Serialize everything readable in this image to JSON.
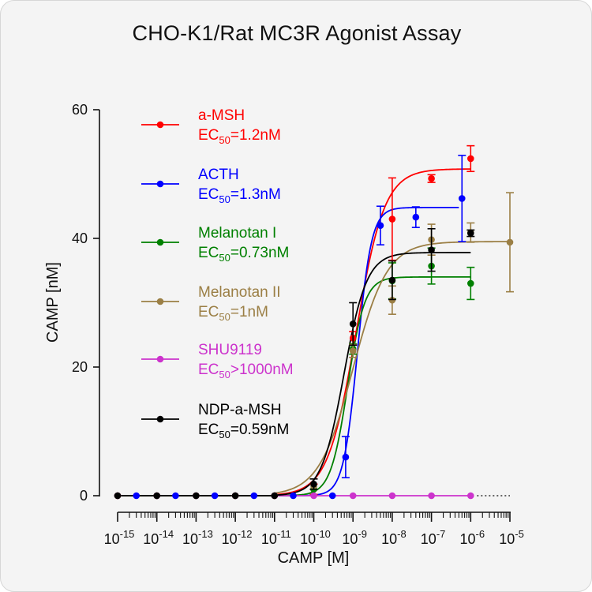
{
  "chart_data": {
    "type": "scatter",
    "title": "CHO-K1/Rat MC3R Agonist Assay",
    "xlabel": "CAMP [M]",
    "ylabel": "CAMP [nM]",
    "xscale": "log",
    "xlim": [
      1e-15,
      1e-05
    ],
    "ylim": [
      0,
      60
    ],
    "ytick_labels": [
      "0",
      "20",
      "40",
      "60"
    ],
    "xtick_labels": [
      {
        "base": "10",
        "exp": "-15"
      },
      {
        "base": "10",
        "exp": "-14"
      },
      {
        "base": "10",
        "exp": "-13"
      },
      {
        "base": "10",
        "exp": "-12"
      },
      {
        "base": "10",
        "exp": "-11"
      },
      {
        "base": "10",
        "exp": "-10"
      },
      {
        "base": "10",
        "exp": "-9"
      },
      {
        "base": "10",
        "exp": "-8"
      },
      {
        "base": "10",
        "exp": "-7"
      },
      {
        "base": "10",
        "exp": "-6"
      },
      {
        "base": "10",
        "exp": "-5"
      }
    ],
    "grid": false,
    "legend_position": "top-left",
    "series": [
      {
        "name": "a-MSH",
        "ec50_label": "EC",
        "ec50_sub": "50",
        "ec50_value": "=1.2nM",
        "color": "#ff0000",
        "fit": {
          "bottom": 0,
          "top": 50.8,
          "ec50": 1.2e-09,
          "hill": 1.2,
          "xmin": 1e-11,
          "xmax": 1e-06
        },
        "points": [
          {
            "x": 1e-15,
            "y": 0
          },
          {
            "x": 1e-14,
            "y": 0
          },
          {
            "x": 1e-13,
            "y": 0
          },
          {
            "x": 1e-12,
            "y": 0
          },
          {
            "x": 1e-11,
            "y": 0
          },
          {
            "x": 1e-10,
            "y": 1.0,
            "err": 0.8
          },
          {
            "x": 1e-09,
            "y": 24.5,
            "err": 1.0
          },
          {
            "x": 1e-08,
            "y": 43.0,
            "err": 6.4
          },
          {
            "x": 1e-07,
            "y": 49.3,
            "err": 0.6
          },
          {
            "x": 1e-06,
            "y": 52.4,
            "err": 2.0
          }
        ]
      },
      {
        "name": "ACTH",
        "ec50_label": "EC",
        "ec50_sub": "50",
        "ec50_value": "=1.3nM",
        "color": "#0000ff",
        "fit": {
          "bottom": 0,
          "top": 44.8,
          "ec50": 1.3e-09,
          "hill": 2.4,
          "xmin": 1e-11,
          "xmax": 5e-07
        },
        "points": [
          {
            "x": 3e-15,
            "y": 0
          },
          {
            "x": 3e-14,
            "y": 0
          },
          {
            "x": 3e-13,
            "y": 0
          },
          {
            "x": 3e-12,
            "y": 0
          },
          {
            "x": 3e-11,
            "y": 0
          },
          {
            "x": 3e-10,
            "y": 0
          },
          {
            "x": 6.5e-10,
            "y": 6.0,
            "err": 3.2
          },
          {
            "x": 5e-09,
            "y": 42.0,
            "err": 3.0
          },
          {
            "x": 4e-08,
            "y": 43.3,
            "err": 1.6
          },
          {
            "x": 6e-07,
            "y": 46.2,
            "err": 6.7
          }
        ]
      },
      {
        "name": "Melanotan I",
        "ec50_label": "EC",
        "ec50_sub": "50",
        "ec50_value": "=0.73nM",
        "color": "#008000",
        "fit": {
          "bottom": 0,
          "top": 34.0,
          "ec50": 7.3e-10,
          "hill": 2.0,
          "xmin": 1e-11,
          "xmax": 1e-06
        },
        "points": [
          {
            "x": 1e-15,
            "y": 0
          },
          {
            "x": 1e-14,
            "y": 0
          },
          {
            "x": 1e-13,
            "y": 0
          },
          {
            "x": 1e-12,
            "y": 0
          },
          {
            "x": 1e-11,
            "y": 0
          },
          {
            "x": 1e-10,
            "y": 1.0
          },
          {
            "x": 1e-09,
            "y": 22.8,
            "err": 0.8
          },
          {
            "x": 1e-08,
            "y": 33.4,
            "err": 2.8
          },
          {
            "x": 1e-07,
            "y": 35.7,
            "err": 2.8
          },
          {
            "x": 1e-06,
            "y": 33.0,
            "err": 2.5
          }
        ]
      },
      {
        "name": "Melanotan II",
        "ec50_label": "EC",
        "ec50_sub": "50",
        "ec50_value": "=1nM",
        "color": "#9b7f45",
        "fit": {
          "bottom": 0,
          "top": 39.5,
          "ec50": 1e-09,
          "hill": 1.0,
          "xmin": 1e-11,
          "xmax": 1e-05
        },
        "points": [
          {
            "x": 1e-15,
            "y": 0
          },
          {
            "x": 1e-14,
            "y": 0
          },
          {
            "x": 1e-13,
            "y": 0
          },
          {
            "x": 1e-12,
            "y": 0
          },
          {
            "x": 1e-11,
            "y": 0
          },
          {
            "x": 1e-10,
            "y": 1.5
          },
          {
            "x": 1e-09,
            "y": 22.5,
            "err": 1.0
          },
          {
            "x": 1e-08,
            "y": 30.4,
            "err": 2.2
          },
          {
            "x": 1e-07,
            "y": 39.8,
            "err": 2.4
          },
          {
            "x": 1e-06,
            "y": 40.9,
            "err": 1.5
          },
          {
            "x": 1e-05,
            "y": 39.4,
            "err": 7.7
          }
        ]
      },
      {
        "name": "SHU9119",
        "ec50_label": "EC",
        "ec50_sub": "50",
        "ec50_value": ">1000nM",
        "color": "#cc33cc",
        "fit": {
          "flat": 0,
          "xmin": 1e-11,
          "xmax": 1e-06
        },
        "points": [
          {
            "x": 1e-15,
            "y": 0
          },
          {
            "x": 1e-14,
            "y": 0
          },
          {
            "x": 1e-13,
            "y": 0
          },
          {
            "x": 1e-12,
            "y": 0
          },
          {
            "x": 1e-11,
            "y": 0
          },
          {
            "x": 1e-10,
            "y": 0
          },
          {
            "x": 1e-09,
            "y": 0
          },
          {
            "x": 1e-08,
            "y": 0
          },
          {
            "x": 1e-07,
            "y": 0
          },
          {
            "x": 1e-06,
            "y": 0
          }
        ]
      },
      {
        "name": "NDP-a-MSH",
        "ec50_label": "EC",
        "ec50_sub": "50",
        "ec50_value": "=0.59nM",
        "color": "#000000",
        "fit": {
          "bottom": 0,
          "top": 37.8,
          "ec50": 5.9e-10,
          "hill": 1.5,
          "xmin": 1e-11,
          "xmax": 1e-06
        },
        "points": [
          {
            "x": 1e-15,
            "y": 0
          },
          {
            "x": 1e-14,
            "y": 0
          },
          {
            "x": 1e-13,
            "y": 0
          },
          {
            "x": 1e-12,
            "y": 0
          },
          {
            "x": 1e-11,
            "y": 0
          },
          {
            "x": 1e-10,
            "y": 1.8,
            "err": 0.8
          },
          {
            "x": 1e-09,
            "y": 26.7,
            "err": 3.3
          },
          {
            "x": 1e-08,
            "y": 33.5,
            "err": 3.0
          },
          {
            "x": 1e-07,
            "y": 38.2,
            "err": 3.3
          },
          {
            "x": 1e-06,
            "y": 40.8,
            "err": 0.5
          }
        ]
      }
    ]
  }
}
